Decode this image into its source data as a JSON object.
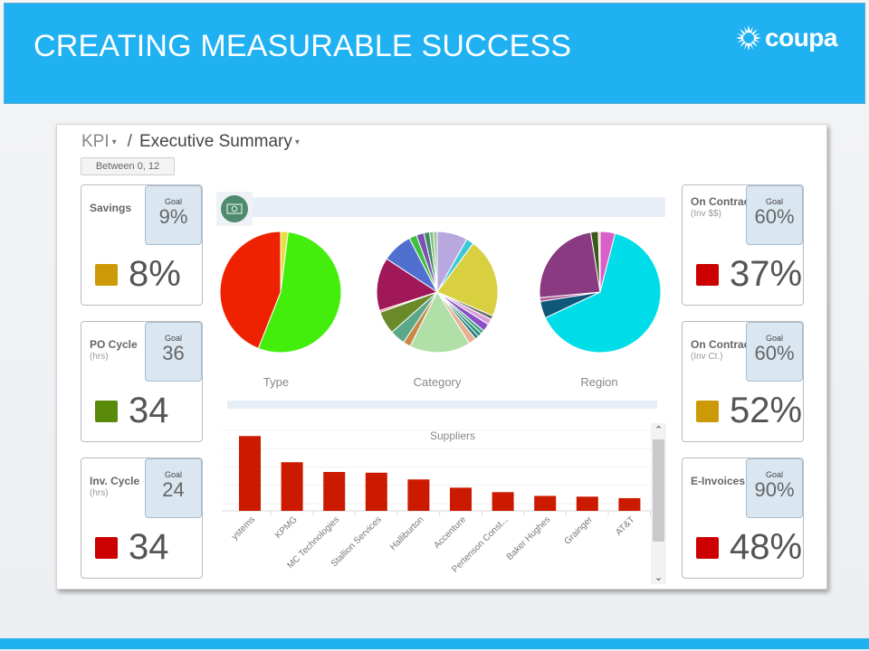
{
  "slide": {
    "title": "CREATING MEASURABLE SUCCESS",
    "logo_text": "coupa",
    "brand_color": "#1fb1f2"
  },
  "breadcrumb": {
    "root": "KPI",
    "separator": "/",
    "current": "Executive Summary",
    "caret": "▾"
  },
  "filter": {
    "label": "Between 0, 12"
  },
  "kpis_left": [
    {
      "label": "Savings",
      "unit": "",
      "goal_label": "Goal",
      "goal": "9%",
      "value": "8%",
      "status_color": "#cc9a06"
    },
    {
      "label": "PO Cycle",
      "unit": "(hrs)",
      "goal_label": "Goal",
      "goal": "36",
      "value": "34",
      "status_color": "#5a8a0a"
    },
    {
      "label": "Inv. Cycle",
      "unit": "(hrs)",
      "goal_label": "Goal",
      "goal": "24",
      "value": "34",
      "status_color": "#cc0000"
    }
  ],
  "kpis_right": [
    {
      "label": "On Contract",
      "unit": "(Inv $$)",
      "goal_label": "Goal",
      "goal": "60%",
      "value": "37%",
      "status_color": "#cc0000"
    },
    {
      "label": "On Contract",
      "unit": "(Inv Ct.)",
      "goal_label": "Goal",
      "goal": "60%",
      "value": "52%",
      "status_color": "#cc9a06"
    },
    {
      "label": "E-Invoices",
      "unit": "",
      "goal_label": "Goal",
      "goal": "90%",
      "value": "48%",
      "status_color": "#cc0000"
    }
  ],
  "icons": {
    "spend": "money-icon",
    "scroll_up": "chevron-up-icon",
    "scroll_down": "chevron-down-icon"
  },
  "chart_data": [
    {
      "type": "pie",
      "title": "Type",
      "slices": [
        {
          "value": 2,
          "color": "#e5e040"
        },
        {
          "value": 54,
          "color": "#44ee0c"
        },
        {
          "value": 44,
          "color": "#ee2200"
        }
      ]
    },
    {
      "type": "pie",
      "title": "Category",
      "slices": [
        {
          "value": 8,
          "color": "#b9a8e0"
        },
        {
          "value": 2,
          "color": "#3cc8d8"
        },
        {
          "value": 21,
          "color": "#d8d040"
        },
        {
          "value": 1,
          "color": "#6a6a6a"
        },
        {
          "value": 1.5,
          "color": "#d8a0d8"
        },
        {
          "value": 2,
          "color": "#8a4ec8"
        },
        {
          "value": 1,
          "color": "#40a880"
        },
        {
          "value": 1,
          "color": "#2a8a7a"
        },
        {
          "value": 1,
          "color": "#208080"
        },
        {
          "value": 2,
          "color": "#e8b090"
        },
        {
          "value": 16,
          "color": "#b0e0a8"
        },
        {
          "value": 2,
          "color": "#c88848"
        },
        {
          "value": 4,
          "color": "#5aa888"
        },
        {
          "value": 6,
          "color": "#6a8a2a"
        },
        {
          "value": 0.5,
          "color": "#e07070"
        },
        {
          "value": 14,
          "color": "#a01858"
        },
        {
          "value": 8,
          "color": "#5070d0"
        },
        {
          "value": 2,
          "color": "#40c040"
        },
        {
          "value": 2,
          "color": "#7a50b0"
        },
        {
          "value": 1.5,
          "color": "#408868"
        },
        {
          "value": 1,
          "color": "#80c080"
        },
        {
          "value": 1,
          "color": "#a0c8a0"
        }
      ]
    },
    {
      "type": "pie",
      "title": "Region",
      "slices": [
        {
          "value": 4,
          "color": "#d860c8"
        },
        {
          "value": 64,
          "color": "#00dde8"
        },
        {
          "value": 4.5,
          "color": "#10587a"
        },
        {
          "value": 1,
          "color": "#b05898"
        },
        {
          "value": 24,
          "color": "#8a3a80"
        },
        {
          "value": 2,
          "color": "#3a5a1a"
        },
        {
          "value": 0.5,
          "color": "#e8d0a0"
        }
      ]
    },
    {
      "type": "bar",
      "title": "Suppliers",
      "categories": [
        "ystems",
        "KPMG",
        "MC Technologies",
        "Stallion Services",
        "Halliburton",
        "Accenture",
        "Pertenson Const...",
        "Baker Hughes",
        "Grainger",
        "AT&T"
      ],
      "values": [
        100,
        65,
        52,
        51,
        42,
        31,
        25,
        20,
        19,
        17
      ],
      "bar_color": "#cc1a00",
      "ylim": [
        0,
        110
      ]
    }
  ]
}
